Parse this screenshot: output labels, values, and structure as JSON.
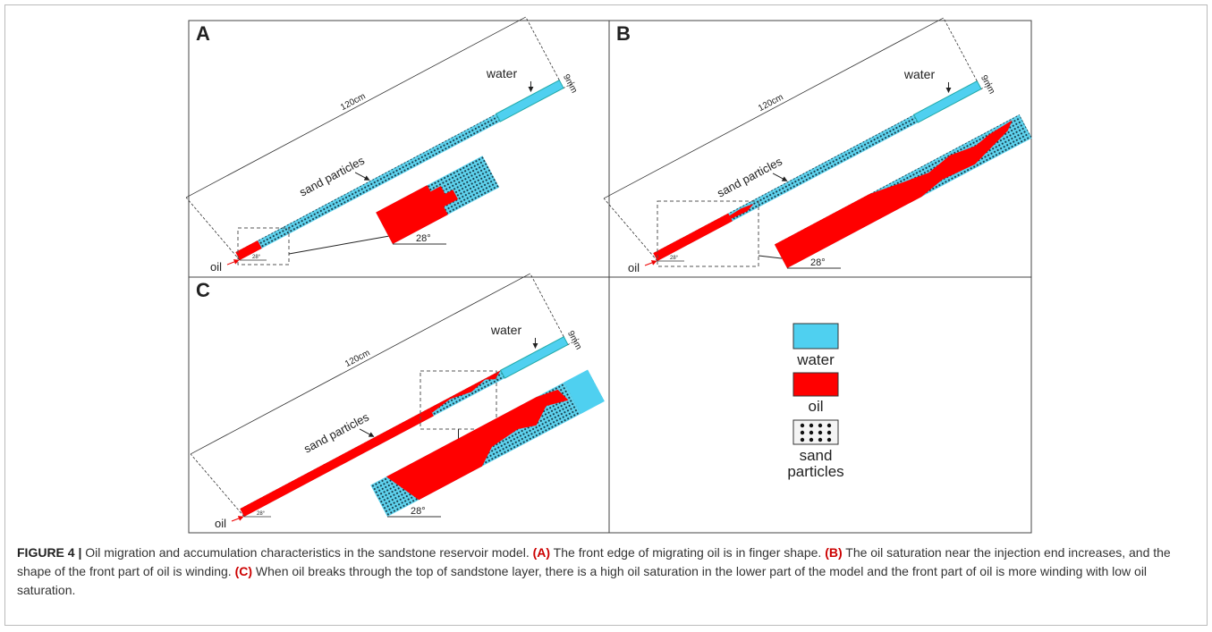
{
  "panels": [
    {
      "letter": "A",
      "water": "water",
      "thickness": "9mm",
      "length": "120cm",
      "sand": "sand particles",
      "oil": "oil",
      "angle": "28°",
      "inset_angle": "28°"
    },
    {
      "letter": "B",
      "water": "water",
      "thickness": "9mm",
      "length": "120cm",
      "sand": "sand particles",
      "oil": "oil",
      "angle": "28°",
      "inset_angle": "28°"
    },
    {
      "letter": "C",
      "water": "water",
      "thickness": "9mm",
      "length": "120cm",
      "sand": "sand particles",
      "oil": "oil",
      "angle": "28°",
      "inset_angle": "28°"
    }
  ],
  "legend": [
    {
      "label": "water"
    },
    {
      "label": "oil"
    },
    {
      "label": "sand particles"
    }
  ],
  "caption": {
    "runs": [
      {
        "text": "FIGURE 4 | ",
        "bold": true,
        "ref": false
      },
      {
        "text": "Oil migration and accumulation characteristics in the sandstone reservoir model. ",
        "bold": false,
        "ref": false
      },
      {
        "text": "(A)",
        "bold": true,
        "ref": true
      },
      {
        "text": " The front edge of migrating oil is in finger shape. ",
        "bold": false,
        "ref": false
      },
      {
        "text": "(B)",
        "bold": true,
        "ref": true
      },
      {
        "text": " The oil saturation near the injection end increases, and the shape of the front part of oil is winding. ",
        "bold": false,
        "ref": false
      },
      {
        "text": "(C)",
        "bold": true,
        "ref": true
      },
      {
        "text": " When oil breaks through the top of sandstone layer, there is a high oil saturation in the lower part of the model and the front part of oil is more winding with low oil saturation.",
        "bold": false,
        "ref": false
      }
    ]
  }
}
